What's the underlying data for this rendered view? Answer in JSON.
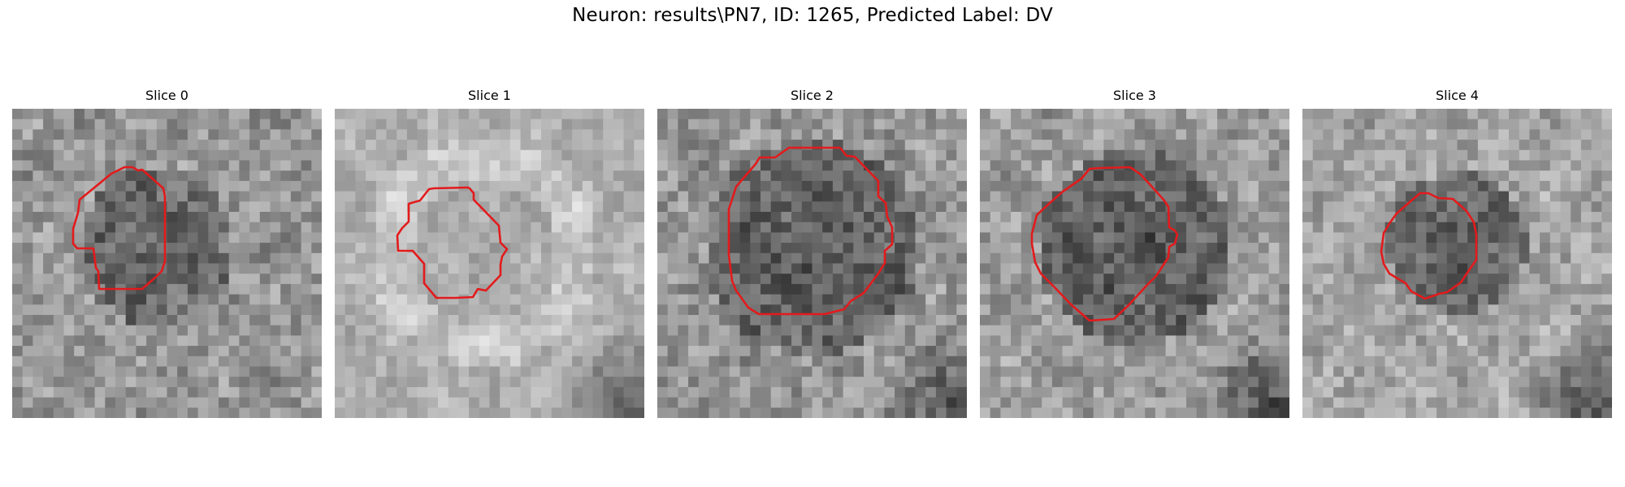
{
  "figure": {
    "title": "Neuron: results\\PN7, ID: 1265, Predicted Label: DV"
  },
  "slices": [
    {
      "title": "Slice 0"
    },
    {
      "title": "Slice 1"
    },
    {
      "title": "Slice 2"
    },
    {
      "title": "Slice 3"
    },
    {
      "title": "Slice 4"
    }
  ],
  "style": {
    "contour_color": "#e31a1c",
    "colormap": "gray"
  }
}
